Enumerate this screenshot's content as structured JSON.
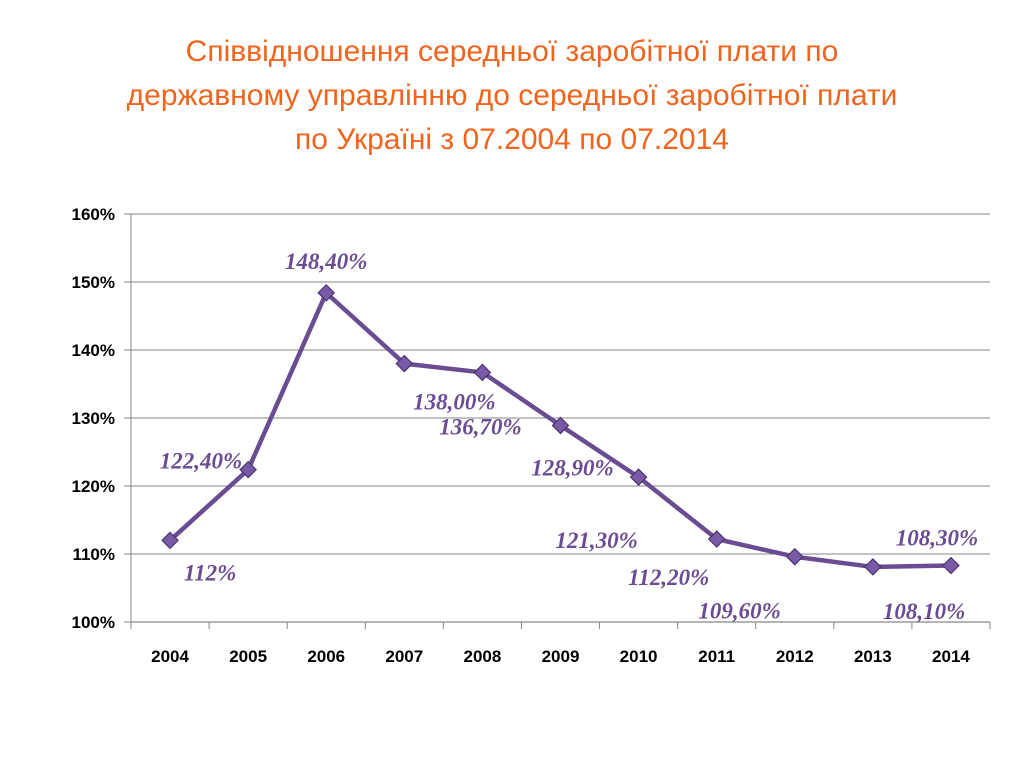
{
  "title": {
    "line1": "Співвідношення середньої заробітної плати по",
    "line2": "державному управлінню до середньої заробітної плати",
    "line3": "по Україні з 07.2004 по 07.2014"
  },
  "colors": {
    "title": "#f0641e",
    "series": "#6a4c93",
    "marker": "#7a5aa6",
    "grid": "#878787"
  },
  "chart_data": {
    "type": "line",
    "categories": [
      "2004",
      "2005",
      "2006",
      "2007",
      "2008",
      "2009",
      "2010",
      "2011",
      "2012",
      "2013",
      "2014"
    ],
    "series": [
      {
        "values": [
          112,
          122.4,
          148.4,
          138.0,
          136.7,
          128.9,
          121.3,
          112.2,
          109.6,
          108.1,
          108.3
        ],
        "data_labels": [
          "112%",
          "122,40%",
          "148,40%",
          "138,00%",
          "136,70%",
          "128,90%",
          "121,30%",
          "112,20%",
          "109,60%",
          "108,10%",
          "108,30%"
        ]
      }
    ],
    "y_ticks": [
      "100%",
      "110%",
      "120%",
      "130%",
      "140%",
      "150%",
      "160%"
    ],
    "ylim": [
      100,
      160
    ],
    "grid": true,
    "marker": "diamond"
  }
}
